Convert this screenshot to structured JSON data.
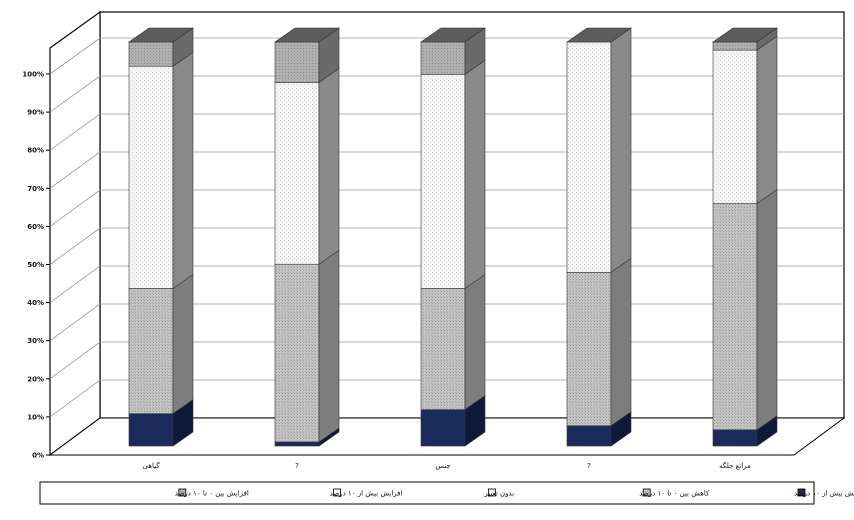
{
  "chart_data": {
    "type": "bar",
    "stacked": true,
    "percent": true,
    "three_d": true,
    "grid": true,
    "legend_position": "bottom",
    "categories": [
      "گیاهی",
      "?",
      "جنس",
      "?",
      "مراتع جلگه"
    ],
    "ylim": [
      0,
      100
    ],
    "y_ticks": [
      "0%",
      "10%",
      "20%",
      "30%",
      "40%",
      "50%",
      "60%",
      "70%",
      "80%",
      "90%",
      "100%"
    ],
    "series": [
      {
        "name": "کاهش بیش از ۱۰ درصد",
        "pattern": "solid",
        "color": "#1a2a5a",
        "values": [
          8,
          1,
          9,
          5,
          4
        ]
      },
      {
        "name": "کاهش بین ۰ تا ۱۰ درصد",
        "pattern": "hatch",
        "color": "#bdbdbd",
        "values": [
          31,
          44,
          30,
          38,
          56
        ]
      },
      {
        "name": "بدون تغییر",
        "pattern": "light-dots",
        "color": "#f4f4f4",
        "values": [
          55,
          45,
          53,
          57,
          38
        ]
      },
      {
        "name": "افزایش بیش از ۱۰ درصد",
        "pattern": "light",
        "color": "#fafafa",
        "values": [
          0,
          0,
          0,
          0,
          0
        ]
      },
      {
        "name": "افزایش بین ۰ تا ۱۰ درصد",
        "pattern": "grey",
        "color": "#a8a8a8",
        "values": [
          6,
          10,
          8,
          0,
          2
        ]
      }
    ]
  },
  "colors": {
    "frame": "#000000",
    "grid": "#9a9a9a",
    "side_shade": "#6d6d6d",
    "top_shade": "#5c5c5c"
  }
}
